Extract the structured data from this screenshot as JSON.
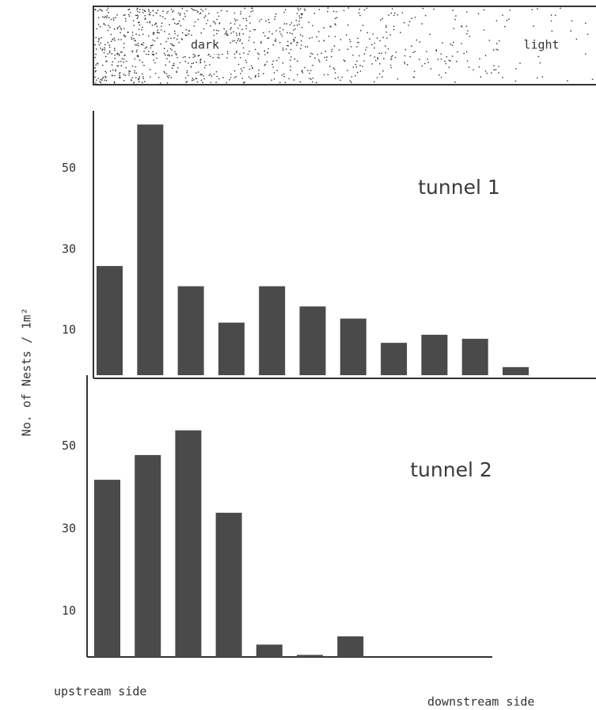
{
  "header": {
    "dark": "dark",
    "light": "light"
  },
  "y_label": "No. of Nests / 1m²",
  "footer": {
    "left": "upstream side",
    "right": "downstream side"
  },
  "chart_data": [
    {
      "type": "bar",
      "title": "tunnel 1",
      "values": [
        27,
        62,
        22,
        13,
        22,
        17,
        14,
        8,
        10,
        9,
        2
      ],
      "color": "#4a4a4a",
      "ylim": [
        0,
        65
      ],
      "yticks": [
        10,
        30,
        50
      ]
    },
    {
      "type": "bar",
      "title": "tunnel 2",
      "values": [
        43,
        49,
        55,
        35,
        3,
        0.5,
        5
      ],
      "color": "#4a4a4a",
      "ylim": [
        0,
        68
      ],
      "yticks": [
        10,
        30,
        50
      ]
    }
  ]
}
